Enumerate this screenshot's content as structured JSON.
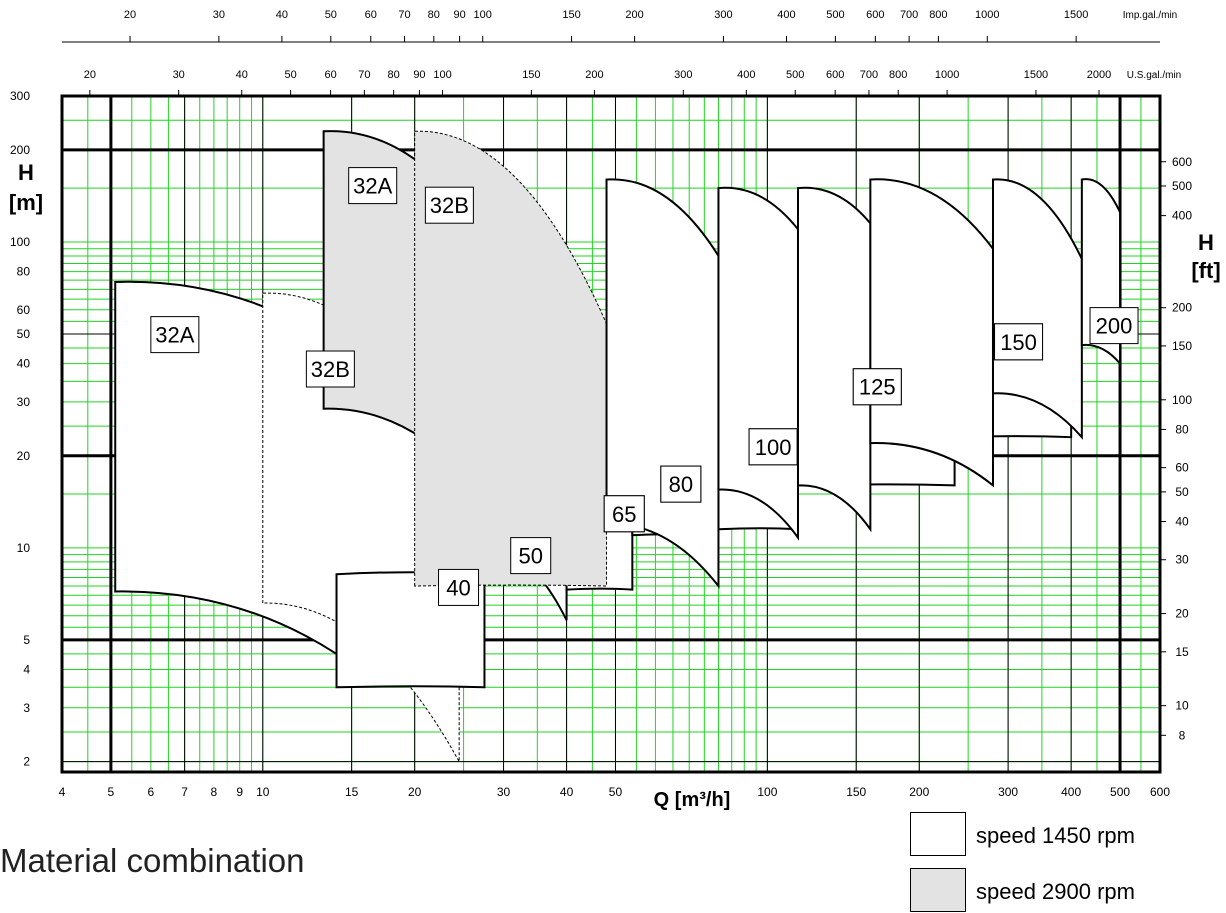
{
  "chart_data": {
    "type": "area",
    "scale": "log-log",
    "x_unit_label": "Q  [m³/h]",
    "x_ticks": [
      "4",
      "5",
      "6",
      "7",
      "8",
      "9",
      "10",
      "15",
      "20",
      "30",
      "40",
      "50",
      "100",
      "150",
      "200",
      "300",
      "400",
      "500",
      "600"
    ],
    "x_range": [
      4,
      600
    ],
    "y_left_unit_label": [
      "H",
      "[m]"
    ],
    "y_left_ticks": [
      "2",
      "3",
      "4",
      "5",
      "10",
      "20",
      "30",
      "40",
      "50",
      "60",
      "80",
      "100",
      "200",
      "300"
    ],
    "y_range": [
      1.85,
      300
    ],
    "y_right_unit_label": [
      "H",
      "[ft]"
    ],
    "y_right_ticks": [
      "8",
      "10",
      "15",
      "20",
      "30",
      "40",
      "50",
      "60",
      "80",
      "100",
      "150",
      "200",
      "400",
      "500",
      "600"
    ],
    "top_axis_1_unit": "Imp.gal./min",
    "top_axis_1_ticks": [
      "20",
      "30",
      "40",
      "50",
      "60",
      "70",
      "80",
      "90",
      "100",
      "150",
      "200",
      "300",
      "400",
      "500",
      "600",
      "700",
      "800",
      "1000",
      "1500"
    ],
    "top_axis_2_unit": "U.S.gal./min",
    "top_axis_2_ticks": [
      "20",
      "30",
      "40",
      "50",
      "60",
      "70",
      "80",
      "90",
      "100",
      "150",
      "200",
      "300",
      "400",
      "500",
      "600",
      "700",
      "800",
      "1000",
      "1500",
      "2000"
    ],
    "grid": true,
    "series": [
      {
        "name": "32A",
        "speed": "1450",
        "q": [
          5.1,
          14.0
        ],
        "h_top": [
          74,
          46
        ],
        "h_bottom": [
          7.2,
          4.5
        ],
        "label_pos": [
          6.0,
          57
        ]
      },
      {
        "name": "32B",
        "speed": "1450",
        "q": [
          10.0,
          24.5
        ],
        "h_top": [
          68,
          20
        ],
        "h_bottom": [
          6.6,
          2.0
        ],
        "dashed": true,
        "label_pos": [
          12.2,
          44
        ]
      },
      {
        "name": "40",
        "speed": "1450",
        "q": [
          14.0,
          27.5
        ],
        "h_top": [
          8.2,
          8.2
        ],
        "h_bottom": [
          3.5,
          3.5
        ],
        "label_pos": [
          22.3,
          8.5
        ]
      },
      {
        "name": "50",
        "speed": "1450",
        "q": [
          27.5,
          40.0
        ],
        "h_top": [
          17.5,
          10.0
        ],
        "h_bottom": [
          10.0,
          5.8
        ],
        "label_pos": [
          31.0,
          10.8
        ]
      },
      {
        "name": "65",
        "speed": "1450",
        "q": [
          40.0,
          54.0
        ],
        "h_top": [
          12.0,
          12.0
        ],
        "h_bottom": [
          7.3,
          7.3
        ],
        "label_pos": [
          47.5,
          14.8
        ]
      },
      {
        "name": "80",
        "speed": "1450",
        "q": [
          54.0,
          80.0
        ],
        "h_top": [
          16.0,
          16.0
        ],
        "h_bottom": [
          11.0,
          11.0
        ],
        "label_pos": [
          61.5,
          18.5
        ]
      },
      {
        "name": "100",
        "speed": "1450",
        "q": [
          80.0,
          115.0
        ],
        "h_top": [
          16.0,
          16.0
        ],
        "h_bottom": [
          11.5,
          11.5
        ],
        "label_pos": [
          92.0,
          24.5
        ]
      },
      {
        "name": "125",
        "speed": "1450",
        "q": [
          115.0,
          235.0
        ],
        "h_top": [
          22.0,
          22.0
        ],
        "h_bottom": [
          16.0,
          16.0
        ],
        "label_pos": [
          148.0,
          38.5
        ]
      },
      {
        "name": "150",
        "speed": "1450",
        "q": [
          235.0,
          400.0
        ],
        "h_top": [
          32.0,
          32.0
        ],
        "h_bottom": [
          23.0,
          23.0
        ],
        "label_pos": [
          282.0,
          54.0
        ]
      },
      {
        "name": "32A",
        "speed": "2900",
        "q": [
          13.2,
          25.0
        ],
        "h_top": [
          230,
          130
        ],
        "h_bottom": [
          28.5,
          17.5
        ],
        "label_pos": [
          14.8,
          175
        ]
      },
      {
        "name": "32B",
        "speed": "2900",
        "q": [
          20.0,
          48.0
        ],
        "h_top": [
          230,
          54
        ],
        "h_bottom": [
          7.5,
          7.5
        ],
        "dashed": true,
        "label_pos": [
          21.0,
          151
        ]
      },
      {
        "name": "65",
        "speed": "1450",
        "q": [
          48.0,
          80.0
        ],
        "h_top": [
          160,
          90
        ],
        "h_bottom": [
          12.0,
          7.5
        ],
        "label_pos": [
          47.5,
          14.8
        ]
      },
      {
        "name": "80",
        "speed": "1450",
        "q": [
          80.0,
          115.0
        ],
        "h_top": [
          150,
          110
        ],
        "h_bottom": [
          15.5,
          10.8
        ],
        "label_pos": [
          61.5,
          18.5
        ]
      },
      {
        "name": "100",
        "speed": "1450",
        "q": [
          115.0,
          160.0
        ],
        "h_top": [
          150,
          115
        ],
        "h_bottom": [
          16.0,
          11.5
        ],
        "label_pos": [
          92.0,
          24.5
        ]
      },
      {
        "name": "125",
        "speed": "1450",
        "q": [
          160.0,
          280.0
        ],
        "h_top": [
          160,
          95
        ],
        "h_bottom": [
          22.0,
          16.0
        ],
        "label_pos": [
          148.0,
          38.5
        ]
      },
      {
        "name": "150",
        "speed": "1450",
        "q": [
          280.0,
          420.0
        ],
        "h_top": [
          160,
          88
        ],
        "h_bottom": [
          32.0,
          23.0
        ],
        "label_pos": [
          282.0,
          54.0
        ]
      },
      {
        "name": "200",
        "speed": "1450",
        "q": [
          420.0,
          500.0
        ],
        "h_top": [
          160,
          125
        ],
        "h_bottom": [
          46.0,
          40.0
        ],
        "label_pos": [
          436.0,
          61.0
        ]
      }
    ]
  },
  "legend": [
    {
      "label": "speed 1450 rpm",
      "color": "#ffffff"
    },
    {
      "label": "speed 2900 rpm",
      "color": "#e3e3e3"
    }
  ],
  "section_title": "Material combination",
  "colors": {
    "grid_minor": "#21d421",
    "grid_major": "#000000",
    "fill_2900": "#e3e3e3"
  }
}
